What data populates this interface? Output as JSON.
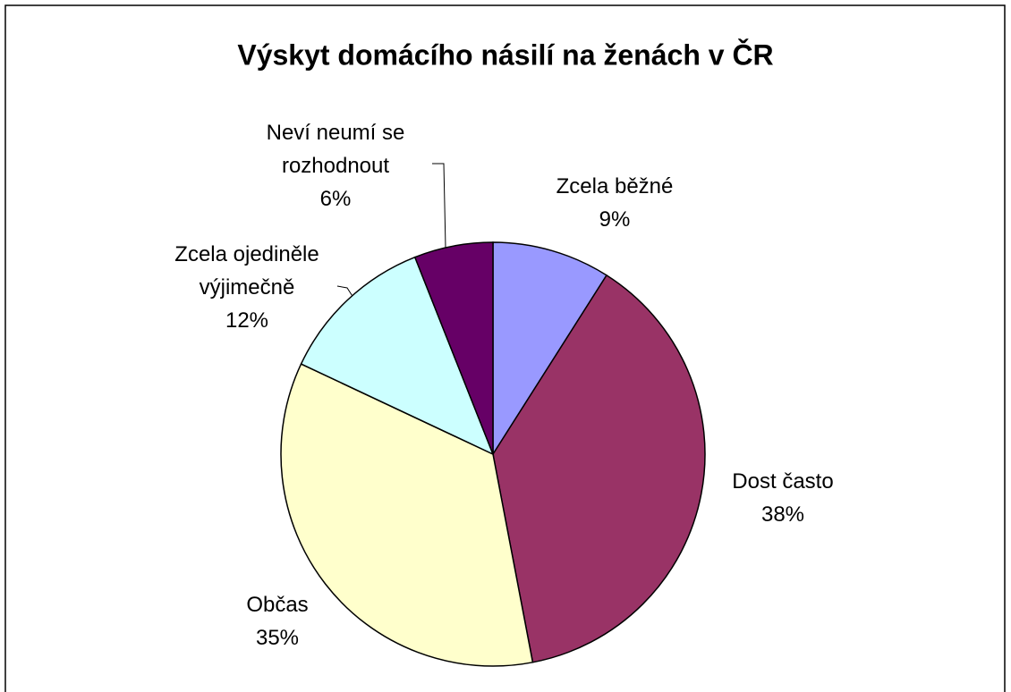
{
  "chart_data": {
    "type": "pie",
    "title": "Výskyt domácího násilí na ženách v ČR",
    "categories": [
      "Zcela běžné",
      "Dost často",
      "Občas",
      "Zcela ojediněle výjimečně",
      "Neví neumí se rozhodnout"
    ],
    "values": [
      9,
      38,
      35,
      12,
      6
    ],
    "value_labels": [
      "9%",
      "38%",
      "35%",
      "12%",
      "6%"
    ],
    "colors": [
      "#9999ff",
      "#993366",
      "#ffffcc",
      "#ccffff",
      "#660066"
    ]
  }
}
